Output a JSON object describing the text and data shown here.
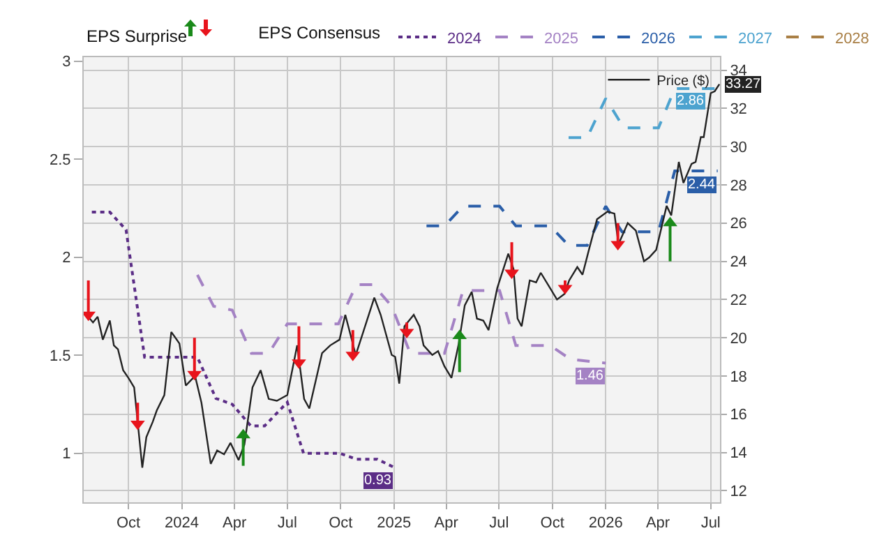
{
  "chart_data": {
    "type": "line",
    "legend_title": "EPS Consensus",
    "annotations": [
      "EPS Surprise"
    ],
    "legend": "top",
    "grid": true,
    "xlim": [
      "2023-07-16",
      "2026-07-17"
    ],
    "xticks": [
      {
        "value": "2023-10-01",
        "label": "Oct"
      },
      {
        "value": "2024-01-01",
        "label": "2024"
      },
      {
        "value": "2024-04-01",
        "label": "Apr"
      },
      {
        "value": "2024-07-01",
        "label": "Jul"
      },
      {
        "value": "2024-10-01",
        "label": "Oct"
      },
      {
        "value": "2025-01-01",
        "label": "2025"
      },
      {
        "value": "2025-04-01",
        "label": "Apr"
      },
      {
        "value": "2025-07-01",
        "label": "Jul"
      },
      {
        "value": "2025-10-01",
        "label": "Oct"
      },
      {
        "value": "2026-01-01",
        "label": "2026"
      },
      {
        "value": "2026-04-01",
        "label": "Apr"
      },
      {
        "value": "2026-07-01",
        "label": "Jul"
      }
    ],
    "ylim": [
      0.75,
      3.02
    ],
    "yticks": [
      1,
      1.5,
      2,
      2.5,
      3
    ],
    "y2lim": [
      11.39,
      34.68
    ],
    "y2ticks": [
      12,
      14,
      16,
      18,
      20,
      22,
      24,
      26,
      28,
      30,
      32,
      34
    ],
    "series": [
      {
        "name": "2024",
        "color": "#5b2d86",
        "line_style": "dotted",
        "x": [
          "2023-07-30",
          "2023-08-30",
          "2023-09-27",
          "2023-10-29",
          "2024-01-28",
          "2024-02-29",
          "2024-03-28",
          "2024-04-29",
          "2024-05-23",
          "2024-07-01",
          "2024-07-29",
          "2024-09-30",
          "2024-10-28",
          "2024-12-03",
          "2024-12-31"
        ],
        "values": [
          2.23,
          2.23,
          2.14,
          1.49,
          1.49,
          1.28,
          1.25,
          1.14,
          1.14,
          1.26,
          1.0,
          1.0,
          0.97,
          0.97,
          0.93
        ],
        "value_labels": [
          null,
          null,
          null,
          null,
          null,
          null,
          null,
          null,
          null,
          null,
          null,
          null,
          null,
          null,
          "0.93"
        ]
      },
      {
        "name": "2025",
        "color": "#a482c4",
        "line_style": "dashed",
        "x": [
          "2024-01-28",
          "2024-02-25",
          "2024-03-28",
          "2024-04-30",
          "2024-05-30",
          "2024-07-01",
          "2024-09-27",
          "2024-10-28",
          "2024-11-26",
          "2024-12-28",
          "2025-01-29",
          "2025-03-29",
          "2025-04-30",
          "2025-07-02",
          "2025-07-30",
          "2025-09-27",
          "2025-11-01",
          "2026-01-01"
        ],
        "values": [
          1.91,
          1.75,
          1.73,
          1.51,
          1.51,
          1.66,
          1.66,
          1.86,
          1.86,
          1.75,
          1.51,
          1.51,
          1.83,
          1.83,
          1.55,
          1.55,
          1.48,
          1.46
        ],
        "value_labels": [
          null,
          null,
          null,
          null,
          null,
          null,
          null,
          null,
          null,
          null,
          null,
          null,
          null,
          null,
          null,
          null,
          null,
          "1.46"
        ]
      },
      {
        "name": "2026",
        "color": "#2a5ea8",
        "line_style": "dashed",
        "x": [
          "2025-02-26",
          "2025-03-29",
          "2025-04-30",
          "2025-07-02",
          "2025-07-30",
          "2025-09-27",
          "2025-10-29",
          "2025-11-30",
          "2026-01-01",
          "2026-01-29",
          "2026-04-02",
          "2026-04-30",
          "2026-07-13"
        ],
        "values": [
          2.16,
          2.16,
          2.26,
          2.26,
          2.16,
          2.16,
          2.06,
          2.06,
          2.26,
          2.13,
          2.13,
          2.44,
          2.44
        ],
        "value_labels": [
          null,
          null,
          null,
          null,
          null,
          null,
          null,
          null,
          null,
          null,
          null,
          null,
          "2.44"
        ]
      },
      {
        "name": "2027",
        "color": "#4da3cf",
        "line_style": "dashed",
        "x": [
          "2025-10-29",
          "2025-11-30",
          "2026-01-01",
          "2026-02-01",
          "2026-04-02",
          "2026-04-30",
          "2026-07-13"
        ],
        "values": [
          2.61,
          2.61,
          2.81,
          2.66,
          2.66,
          2.86,
          2.86
        ],
        "value_labels": [
          null,
          null,
          null,
          null,
          null,
          "2.86",
          null
        ]
      },
      {
        "name": "2028",
        "color": "#a97f45",
        "line_style": "dashed"
      },
      {
        "name": "Price ($)",
        "color": "#222222",
        "line_style": "solid",
        "axis": "y2",
        "x": [
          "2023-07-21",
          "2023-08-01",
          "2023-08-09",
          "2023-08-18",
          "2023-08-30",
          "2023-09-06",
          "2023-09-13",
          "2023-09-22",
          "2023-10-01",
          "2023-10-11",
          "2023-10-25",
          "2023-11-01",
          "2023-11-12",
          "2023-11-19",
          "2023-12-02",
          "2023-12-14",
          "2023-12-28",
          "2024-01-08",
          "2024-01-24",
          "2024-02-04",
          "2024-02-20",
          "2024-03-02",
          "2024-03-14",
          "2024-03-25",
          "2024-04-08",
          "2024-04-18",
          "2024-05-02",
          "2024-05-16",
          "2024-05-30",
          "2024-06-13",
          "2024-07-01",
          "2024-07-18",
          "2024-07-30",
          "2024-08-08",
          "2024-08-30",
          "2024-09-13",
          "2024-09-29",
          "2024-10-09",
          "2024-10-27",
          "2024-11-10",
          "2024-11-28",
          "2024-12-09",
          "2024-12-28",
          "2025-01-03",
          "2025-01-10",
          "2025-01-19",
          "2025-02-04",
          "2025-02-14",
          "2025-02-21",
          "2025-03-08",
          "2025-03-18",
          "2025-03-29",
          "2025-04-10",
          "2025-04-22",
          "2025-05-03",
          "2025-05-15",
          "2025-05-24",
          "2025-06-04",
          "2025-06-13",
          "2025-06-28",
          "2025-07-17",
          "2025-07-26",
          "2025-08-02",
          "2025-08-09",
          "2025-08-23",
          "2025-09-03",
          "2025-09-11",
          "2025-09-27",
          "2025-10-09",
          "2025-10-22",
          "2025-10-30",
          "2025-11-13",
          "2025-11-22",
          "2025-12-03",
          "2025-12-17",
          "2026-01-04",
          "2026-01-16",
          "2026-01-23",
          "2026-02-08",
          "2026-02-22",
          "2026-03-08",
          "2026-03-17",
          "2026-03-29",
          "2026-04-16",
          "2026-04-24",
          "2026-05-07",
          "2026-05-15",
          "2026-05-29",
          "2026-06-05",
          "2026-06-14",
          "2026-06-19",
          "2026-07-01",
          "2026-07-08",
          "2026-07-16"
        ],
        "values": [
          21.2,
          20.8,
          21.1,
          19.9,
          20.9,
          19.6,
          19.4,
          18.3,
          17.9,
          17.4,
          13.2,
          14.8,
          15.6,
          16.2,
          17.0,
          20.3,
          19.7,
          17.5,
          18.0,
          16.6,
          13.4,
          14.1,
          13.9,
          14.5,
          13.6,
          14.4,
          17.4,
          18.3,
          16.8,
          16.7,
          17.0,
          19.6,
          16.8,
          16.3,
          19.2,
          19.6,
          19.9,
          21.2,
          19.1,
          20.4,
          22.1,
          21.2,
          19.1,
          19.0,
          17.6,
          20.6,
          21.2,
          20.6,
          19.6,
          19.1,
          19.3,
          18.5,
          17.9,
          19.6,
          21.7,
          22.4,
          21.0,
          20.9,
          20.4,
          22.6,
          24.4,
          23.6,
          21.0,
          20.6,
          23.0,
          22.9,
          23.4,
          22.6,
          22.0,
          22.3,
          23.0,
          23.7,
          23.3,
          24.6,
          26.2,
          26.6,
          26.5,
          24.9,
          26.0,
          25.6,
          24.0,
          24.2,
          24.6,
          26.9,
          26.4,
          29.2,
          28.1,
          29.1,
          29.2,
          30.5,
          30.5,
          32.8,
          32.9,
          33.27
        ],
        "value_labels": [
          null,
          null,
          null,
          null,
          null,
          null,
          null,
          null,
          null,
          null,
          null,
          null,
          null,
          null,
          null,
          null,
          null,
          null,
          null,
          null,
          null,
          null,
          null,
          null,
          null,
          null,
          null,
          null,
          null,
          null,
          null,
          null,
          null,
          null,
          null,
          null,
          null,
          null,
          null,
          null,
          null,
          null,
          null,
          null,
          null,
          null,
          null,
          null,
          null,
          null,
          null,
          null,
          null,
          null,
          null,
          null,
          null,
          null,
          null,
          null,
          null,
          null,
          null,
          null,
          null,
          null,
          null,
          null,
          null,
          null,
          null,
          null,
          null,
          null,
          null,
          null,
          null,
          null,
          null,
          null,
          null,
          null,
          null,
          null,
          null,
          null,
          null,
          null,
          null,
          null,
          null,
          null,
          null,
          "33.27"
        ]
      },
      {
        "type": "scatter",
        "color": "#e8141c",
        "marker": "triangle",
        "axis": "y2",
        "x": [
          "2023-07-24",
          "2023-10-17",
          "2024-01-23",
          "2024-07-21",
          "2024-10-22",
          "2025-01-23",
          "2025-07-23",
          "2025-10-23",
          "2026-01-22"
        ],
        "values": [
          21.2,
          15.5,
          18.1,
          18.7,
          19.1,
          20.3,
          23.4,
          22.6,
          24.9
        ],
        "errors": [
          [
            21.2,
            23.0
          ],
          [
            15.5,
            16.6
          ],
          [
            18.1,
            20.0
          ],
          [
            18.7,
            20.6
          ],
          [
            19.1,
            20.4
          ],
          [
            20.3,
            20.8
          ],
          [
            23.4,
            25.0
          ],
          [
            22.6,
            23.0
          ],
          [
            24.9,
            26.0
          ]
        ]
      },
      {
        "type": "scatter",
        "color": "#1a8a1a",
        "marker": "triangle",
        "axis": "y2",
        "x": [
          "2024-04-16",
          "2025-04-24",
          "2026-04-22"
        ],
        "values": [
          14.9,
          20.1,
          26.0
        ],
        "errors": [
          [
            13.3,
            14.9
          ],
          [
            18.2,
            20.1
          ],
          [
            24.0,
            26.0
          ]
        ]
      }
    ]
  }
}
